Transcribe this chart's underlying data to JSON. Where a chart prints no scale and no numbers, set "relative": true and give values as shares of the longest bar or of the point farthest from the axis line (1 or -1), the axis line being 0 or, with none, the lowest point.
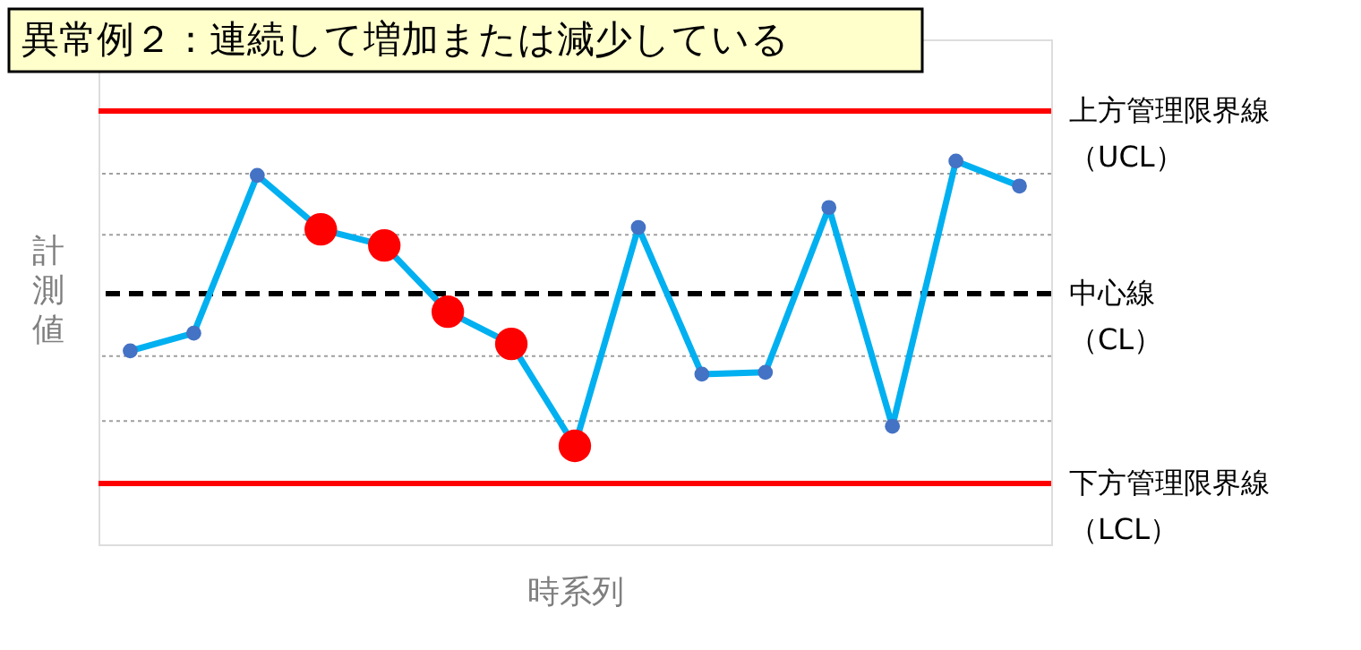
{
  "chart_data": {
    "type": "line",
    "title": "異常例２：連続して増加または減少している",
    "xlabel": "時系列",
    "ylabel": "計測値",
    "relative": true,
    "marker": "circle",
    "line_style": "solid",
    "tick_labels": false,
    "grid": false,
    "categories": [
      null,
      null,
      null,
      null,
      null,
      null,
      null,
      null,
      null,
      null,
      null,
      null,
      null,
      null,
      null
    ],
    "series": [
      {
        "color": "#00b0f0",
        "colors": [
          "#4472c4",
          "#4472c4",
          "#4472c4",
          "#ff0000",
          "#ff0000",
          "#ff0000",
          "#ff0000",
          "#ff0000",
          "#4472c4",
          "#4472c4",
          "#4472c4",
          "#4472c4",
          "#4472c4",
          "#4472c4",
          "#4472c4"
        ],
        "values": [
          0.505,
          0.551,
          0.963,
          0.822,
          0.78,
          0.607,
          0.523,
          0.257,
          0.827,
          0.444,
          0.449,
          0.879,
          0.308,
          1.0,
          0.935
        ]
      }
    ],
    "ref_lines": [
      {
        "axis": "y",
        "value": 1.131,
        "label": "上方管理限界線（UCL）",
        "color": "#ff0000",
        "line_style": "solid"
      },
      {
        "axis": "y",
        "value": 0.654,
        "label": "中心線（CL）",
        "color": "#000000",
        "line_style": "dashed"
      },
      {
        "axis": "y",
        "value": 0.159,
        "label": "下方管理限界線（LCL）",
        "color": "#ff0000",
        "line_style": "solid"
      },
      {
        "axis": "y",
        "value": 0.967,
        "color": "#a0a0a0",
        "line_style": "dotted"
      },
      {
        "axis": "y",
        "value": 0.808,
        "color": "#a0a0a0",
        "line_style": "dotted"
      },
      {
        "axis": "y",
        "value": 0.491,
        "color": "#a0a0a0",
        "line_style": "dotted"
      },
      {
        "axis": "y",
        "value": 0.322,
        "color": "#a0a0a0",
        "line_style": "dotted"
      }
    ]
  }
}
